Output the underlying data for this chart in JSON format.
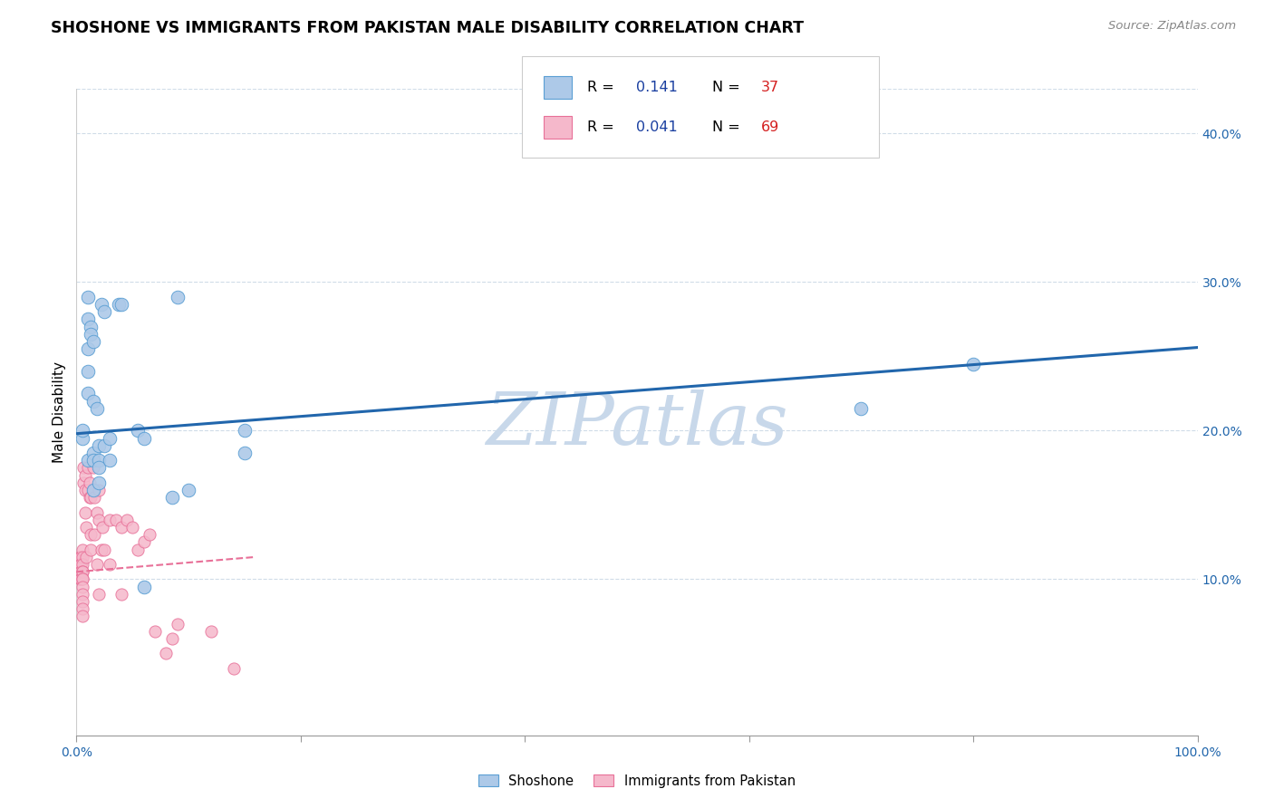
{
  "title": "SHOSHONE VS IMMIGRANTS FROM PAKISTAN MALE DISABILITY CORRELATION CHART",
  "source": "Source: ZipAtlas.com",
  "ylabel": "Male Disability",
  "shoshone_R": 0.141,
  "shoshone_N": 37,
  "pakistan_R": 0.041,
  "pakistan_N": 69,
  "shoshone_color": "#adc9e8",
  "pakistan_color": "#f5b8cb",
  "shoshone_edge_color": "#5a9fd4",
  "pakistan_edge_color": "#e87098",
  "shoshone_line_color": "#2166ac",
  "pakistan_line_color": "#e87098",
  "watermark_color": "#c8d8ea",
  "shoshone_x": [
    0.005,
    0.005,
    0.01,
    0.01,
    0.01,
    0.01,
    0.01,
    0.01,
    0.013,
    0.013,
    0.015,
    0.015,
    0.015,
    0.015,
    0.015,
    0.018,
    0.02,
    0.02,
    0.02,
    0.02,
    0.022,
    0.025,
    0.025,
    0.03,
    0.03,
    0.038,
    0.04,
    0.055,
    0.06,
    0.06,
    0.085,
    0.09,
    0.1,
    0.15,
    0.15,
    0.7,
    0.8
  ],
  "shoshone_y": [
    0.195,
    0.2,
    0.275,
    0.29,
    0.255,
    0.24,
    0.225,
    0.18,
    0.27,
    0.265,
    0.26,
    0.22,
    0.185,
    0.18,
    0.16,
    0.215,
    0.19,
    0.18,
    0.175,
    0.165,
    0.285,
    0.28,
    0.19,
    0.195,
    0.18,
    0.285,
    0.285,
    0.2,
    0.195,
    0.095,
    0.155,
    0.29,
    0.16,
    0.2,
    0.185,
    0.215,
    0.245
  ],
  "pakistan_x": [
    0.003,
    0.003,
    0.003,
    0.003,
    0.003,
    0.003,
    0.003,
    0.003,
    0.004,
    0.004,
    0.004,
    0.004,
    0.004,
    0.004,
    0.004,
    0.005,
    0.005,
    0.005,
    0.005,
    0.005,
    0.005,
    0.005,
    0.005,
    0.005,
    0.005,
    0.005,
    0.005,
    0.006,
    0.006,
    0.008,
    0.008,
    0.008,
    0.009,
    0.009,
    0.01,
    0.01,
    0.012,
    0.012,
    0.013,
    0.013,
    0.013,
    0.015,
    0.015,
    0.016,
    0.016,
    0.018,
    0.018,
    0.02,
    0.02,
    0.02,
    0.022,
    0.023,
    0.025,
    0.03,
    0.03,
    0.035,
    0.04,
    0.04,
    0.045,
    0.05,
    0.055,
    0.06,
    0.065,
    0.07,
    0.08,
    0.085,
    0.09,
    0.12,
    0.14
  ],
  "pakistan_y": [
    0.115,
    0.115,
    0.11,
    0.11,
    0.11,
    0.105,
    0.105,
    0.1,
    0.115,
    0.11,
    0.11,
    0.105,
    0.105,
    0.1,
    0.1,
    0.12,
    0.115,
    0.11,
    0.105,
    0.105,
    0.1,
    0.1,
    0.095,
    0.09,
    0.085,
    0.08,
    0.075,
    0.175,
    0.165,
    0.17,
    0.16,
    0.145,
    0.135,
    0.115,
    0.175,
    0.16,
    0.165,
    0.155,
    0.155,
    0.13,
    0.12,
    0.175,
    0.16,
    0.155,
    0.13,
    0.145,
    0.11,
    0.16,
    0.14,
    0.09,
    0.12,
    0.135,
    0.12,
    0.14,
    0.11,
    0.14,
    0.135,
    0.09,
    0.14,
    0.135,
    0.12,
    0.125,
    0.13,
    0.065,
    0.05,
    0.06,
    0.07,
    0.065,
    0.04
  ],
  "xlim": [
    0.0,
    1.0
  ],
  "ylim": [
    -0.005,
    0.43
  ],
  "shoshone_trendline_x": [
    0.0,
    1.0
  ],
  "shoshone_trendline_y": [
    0.198,
    0.256
  ],
  "pakistan_trendline_x": [
    0.0,
    0.16
  ],
  "pakistan_trendline_y": [
    0.105,
    0.115
  ],
  "background_color": "#ffffff",
  "grid_color": "#d0dce8",
  "legend_text_color": "#1a3fa0",
  "legend_N_color": "#d42020"
}
